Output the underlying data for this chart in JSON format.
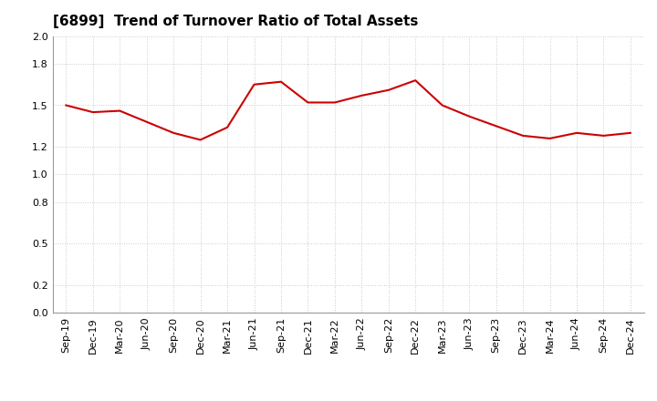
{
  "title": "[6899]  Trend of Turnover Ratio of Total Assets",
  "x_labels": [
    "Sep-19",
    "Dec-19",
    "Mar-20",
    "Jun-20",
    "Sep-20",
    "Dec-20",
    "Mar-21",
    "Jun-21",
    "Sep-21",
    "Dec-21",
    "Mar-22",
    "Jun-22",
    "Sep-22",
    "Dec-22",
    "Mar-23",
    "Jun-23",
    "Sep-23",
    "Dec-23",
    "Mar-24",
    "Jun-24",
    "Sep-24",
    "Dec-24"
  ],
  "values": [
    1.5,
    1.45,
    1.46,
    1.38,
    1.3,
    1.25,
    1.34,
    1.65,
    1.67,
    1.52,
    1.52,
    1.57,
    1.61,
    1.68,
    1.5,
    1.42,
    1.35,
    1.28,
    1.26,
    1.3,
    1.28,
    1.3
  ],
  "line_color": "#cc0000",
  "line_width": 1.5,
  "ylim": [
    0.0,
    2.0
  ],
  "yticks": [
    0.0,
    0.2,
    0.5,
    0.8,
    1.0,
    1.2,
    1.5,
    1.8,
    2.0
  ],
  "grid_color": "#bbbbbb",
  "bg_color": "#ffffff",
  "title_fontsize": 11,
  "label_fontsize": 8
}
